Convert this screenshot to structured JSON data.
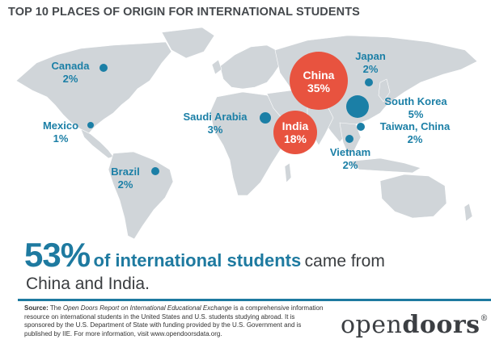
{
  "title": "TOP 10 PLACES OF ORIGIN FOR INTERNATIONAL STUDENTS",
  "places": [
    {
      "name": "China",
      "pct": "35%",
      "color": "#e8533f"
    },
    {
      "name": "India",
      "pct": "18%",
      "color": "#e8533f"
    },
    {
      "name": "South Korea",
      "pct": "5%",
      "color": "#1b7fa6"
    },
    {
      "name": "Saudi Arabia",
      "pct": "3%",
      "color": "#1b7fa6"
    },
    {
      "name": "Canada",
      "pct": "2%",
      "color": "#1b7fa6"
    },
    {
      "name": "Vietnam",
      "pct": "2%",
      "color": "#1b7fa6"
    },
    {
      "name": "Taiwan, China",
      "pct": "2%",
      "color": "#1b7fa6"
    },
    {
      "name": "Japan",
      "pct": "2%",
      "color": "#1b7fa6"
    },
    {
      "name": "Brazil",
      "pct": "2%",
      "color": "#1b7fa6"
    },
    {
      "name": "Mexico",
      "pct": "1%",
      "color": "#1b7fa6"
    }
  ],
  "headline": {
    "big": "53%",
    "mid": "of international students",
    "tail": "came from",
    "line2": "China and India."
  },
  "source": {
    "label": "Source:",
    "pre": "The",
    "report": "Open Doors Report on International Educational Exchange",
    "rest": "is a comprehensive information resource on international students in the United States and U.S. students studying abroad. It is sponsored by the U.S. Department of State with funding provided by the U.S. Government and is published by IIE. For more information, visit www.opendoorsdata.org."
  },
  "logo": {
    "part1": "open",
    "part2": "doors",
    "mark": "®"
  },
  "colors": {
    "accent_blue": "#1b7fa6",
    "accent_red": "#e8533f",
    "land": "#d0d5d9"
  }
}
